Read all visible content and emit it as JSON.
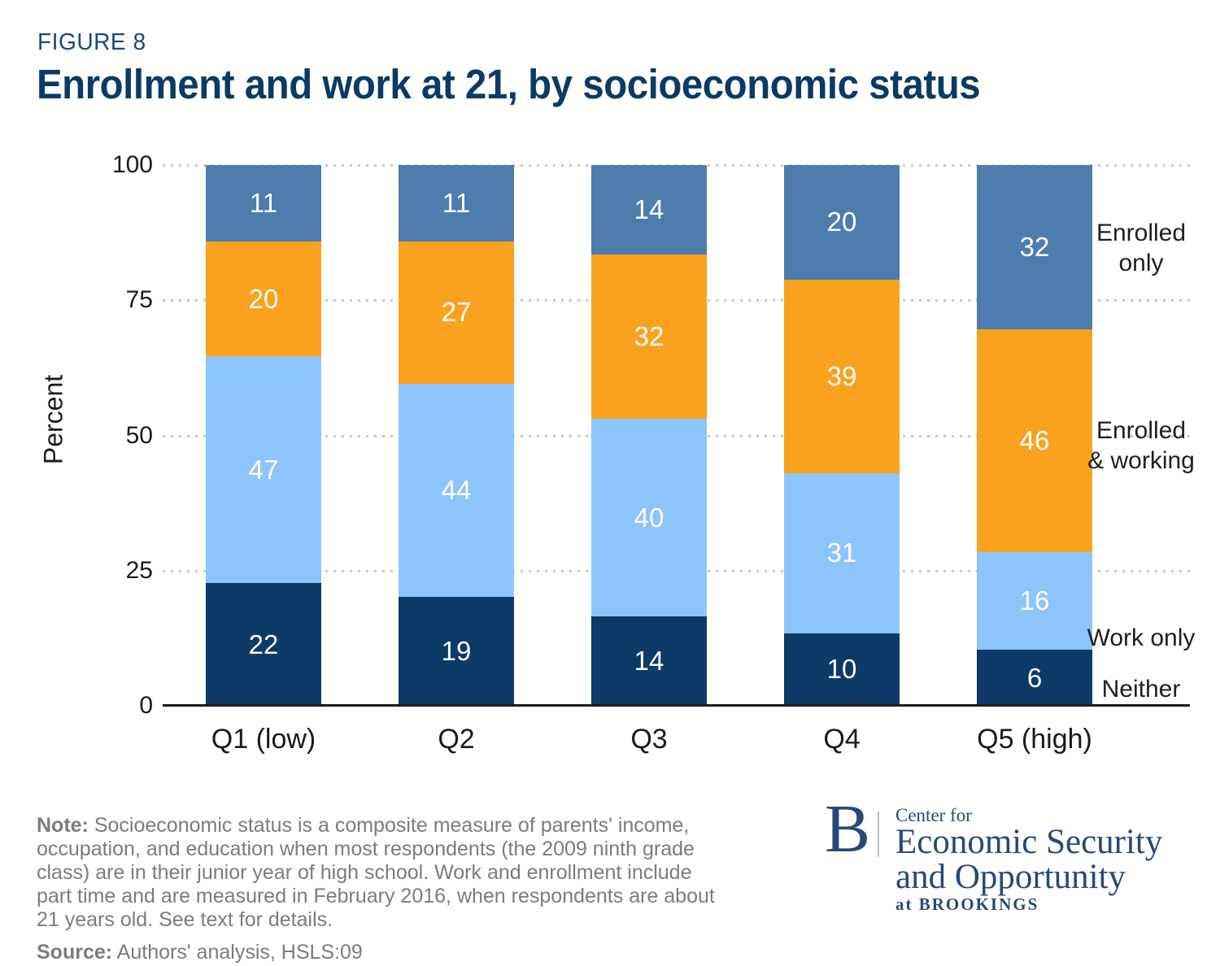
{
  "figure_label": "FIGURE 8",
  "title": "Enrollment and work at 21, by socioeconomic status",
  "chart_data": {
    "type": "bar",
    "stacked": true,
    "orientation": "vertical",
    "categories": [
      "Q1 (low)",
      "Q2",
      "Q3",
      "Q4",
      "Q5 (high)"
    ],
    "series": [
      {
        "name": "Neither",
        "color": "#0d3a67",
        "values": [
          22,
          19,
          14,
          10,
          6
        ]
      },
      {
        "name": "Work only",
        "color": "#8cc5fb",
        "values": [
          47,
          44,
          40,
          31,
          16
        ]
      },
      {
        "name": "Enrolled & working",
        "color": "#faa21d",
        "values": [
          20,
          27,
          32,
          39,
          46
        ]
      },
      {
        "name": "Enrolled only",
        "color": "#4e7cae",
        "values": [
          11,
          11,
          14,
          20,
          32
        ]
      }
    ],
    "ylabel": "Percent",
    "yticks": [
      0,
      25,
      50,
      75,
      100
    ],
    "ylim": [
      0,
      100
    ],
    "grid": "dotted horizontal gridlines at 25/50/75/100",
    "legend_position": "right",
    "legend_labels": [
      "Enrolled\nonly",
      "Enrolled\n& working",
      "Work only",
      "Neither"
    ],
    "value_labels_shown": true
  },
  "note": {
    "label": "Note:",
    "text": "Socioeconomic status is a composite measure of parents' income,\noccupation, and education when most respondents (the 2009 ninth grade\nclass) are in their junior year of high school. Work and enrollment include\npart time and are measured in February 2016, when respondents are about\n21 years old. See text for details."
  },
  "source": {
    "label": "Source:",
    "text": "Authors' analysis, HSLS:09"
  },
  "logo": {
    "b": "B",
    "line1": "Center for",
    "line2": "Economic Security",
    "line3": "and Opportunity",
    "line4": "at BROOKINGS"
  },
  "colors": {
    "title": "#0c3a66",
    "figure_label": "#17497c",
    "axis_text": "#1b1b1b",
    "note_text": "#7c7c7c",
    "logo_navy": "#27497a",
    "gridline": "#c9c9c9",
    "axis_line": "#1c1c1c"
  }
}
